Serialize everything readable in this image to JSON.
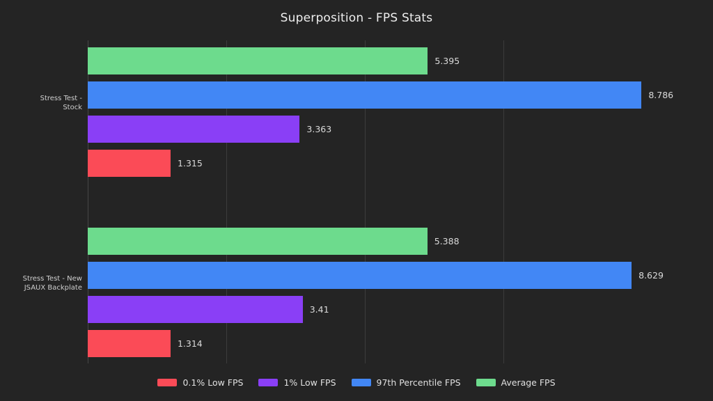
{
  "colors": {
    "background": "#242424",
    "grid": "#3c3c3c",
    "axis": "#474747",
    "title_text": "#eeeeee",
    "category_text": "#cfcfcf",
    "value_text": "#dadada",
    "legend_text": "#e0e0e0"
  },
  "chart_data": {
    "type": "bar",
    "orientation": "horizontal",
    "title": "Superposition - FPS Stats",
    "xlabel": "",
    "ylabel": "",
    "xlim": [
      0,
      9.92
    ],
    "gridlines_at": [
      2.2,
      4.4,
      6.6
    ],
    "grid": true,
    "legend_position": "bottom",
    "categories": [
      "Stress Test - Stock",
      "Stress Test - New JSAUX Backplate"
    ],
    "category_label_lines": [
      [
        "Stress Test -",
        "Stock"
      ],
      [
        "Stress Test - New",
        "JSAUX Backplate"
      ]
    ],
    "series": [
      {
        "name": "Average FPS",
        "color": "#6ddb8d",
        "values": [
          5.395,
          5.388
        ],
        "labels": [
          "5.395",
          "5.388"
        ]
      },
      {
        "name": "97th Percentile FPS",
        "color": "#4287f5",
        "values": [
          8.786,
          8.629
        ],
        "labels": [
          "8.786",
          "8.629"
        ]
      },
      {
        "name": "1% Low FPS",
        "color": "#8a3ff6",
        "values": [
          3.363,
          3.41
        ],
        "labels": [
          "3.363",
          "3.41"
        ]
      },
      {
        "name": "0.1% Low FPS",
        "color": "#fb4b57",
        "values": [
          1.315,
          1.314
        ],
        "labels": [
          "1.315",
          "1.314"
        ]
      }
    ],
    "legend": [
      {
        "label": "0.1% Low FPS",
        "color": "#fb4b57"
      },
      {
        "label": "1% Low FPS",
        "color": "#8a3ff6"
      },
      {
        "label": "97th Percentile FPS",
        "color": "#4287f5"
      },
      {
        "label": "Average FPS",
        "color": "#6ddb8d"
      }
    ]
  }
}
